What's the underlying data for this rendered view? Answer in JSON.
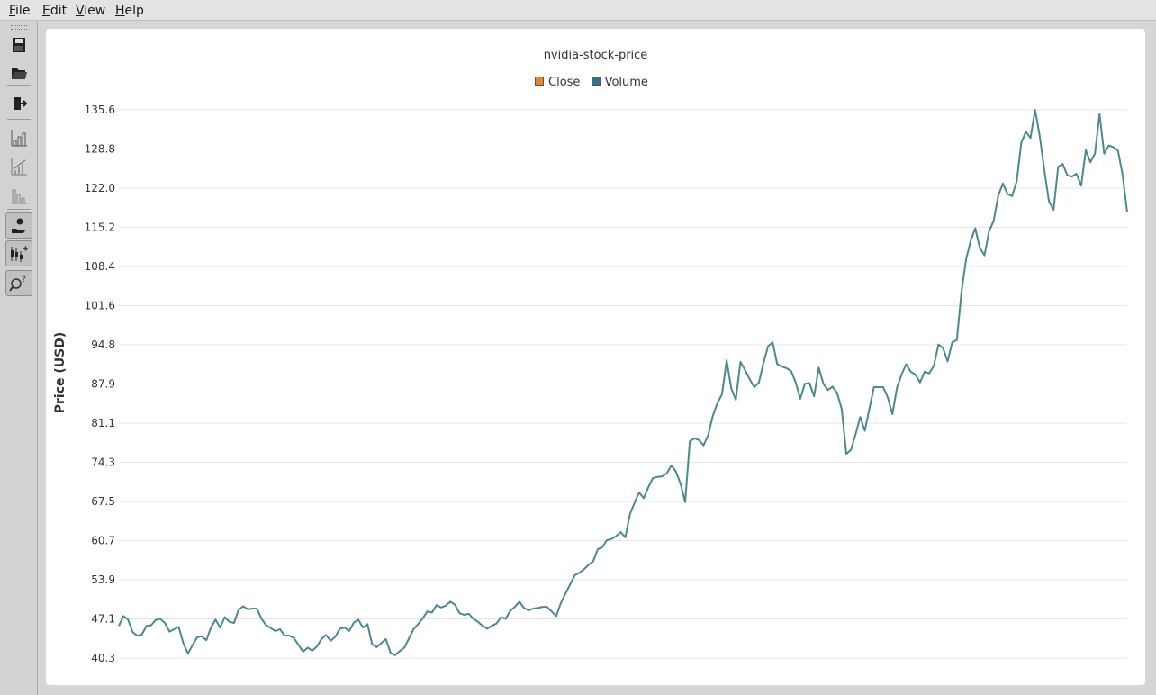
{
  "menu": {
    "items": [
      "File",
      "Edit",
      "View",
      "Help"
    ]
  },
  "toolbar": {
    "buttons": [
      {
        "icon": "save-icon",
        "pressed": false
      },
      {
        "icon": "open-folder-icon",
        "pressed": false
      },
      {
        "icon": "exit-icon",
        "pressed": false
      },
      {
        "icon": "bar-chart-icon",
        "pressed": false
      },
      {
        "icon": "line-chart-icon",
        "pressed": false
      },
      {
        "icon": "descending-chart-icon",
        "pressed": false
      },
      {
        "icon": "hand-coin-icon",
        "pressed": true
      },
      {
        "icon": "candlestick-add-icon",
        "pressed": true
      },
      {
        "icon": "search-help-icon",
        "pressed": true
      }
    ]
  },
  "colors": {
    "line": "#4a8a8e",
    "close_swatch": "#e8822a",
    "volume_swatch": "#3a6f8f",
    "grid": "#e4e4e4"
  },
  "chart_data": {
    "type": "line",
    "title": "nvidia-stock-price",
    "legend": [
      "Close",
      "Volume"
    ],
    "legend_colors": [
      "#e8822a",
      "#3a6f8f"
    ],
    "ylabel": "Price (USD)",
    "xlabel": "",
    "ylim": [
      40.3,
      135.6
    ],
    "yticks": [
      "40.3",
      "47.1",
      "53.9",
      "60.7",
      "67.5",
      "74.3",
      "81.1",
      "87.9",
      "94.8",
      "101.6",
      "108.4",
      "115.2",
      "122.0",
      "128.8",
      "135.6"
    ],
    "grid": true,
    "series": [
      {
        "name": "Close",
        "values": [
          45.9,
          47.6,
          47.0,
          44.8,
          44.2,
          44.4,
          45.9,
          46.0,
          46.9,
          47.1,
          46.4,
          44.9,
          45.3,
          45.7,
          42.9,
          41.1,
          42.5,
          43.9,
          44.1,
          43.4,
          45.6,
          47.0,
          45.6,
          47.4,
          46.6,
          46.4,
          48.7,
          49.3,
          48.8,
          48.9,
          48.9,
          47.1,
          46.0,
          45.5,
          45.0,
          45.3,
          44.2,
          44.2,
          43.8,
          42.6,
          41.4,
          42.1,
          41.6,
          42.3,
          43.6,
          44.3,
          43.3,
          44.0,
          45.4,
          45.6,
          45.0,
          46.4,
          47.0,
          45.6,
          46.2,
          42.7,
          42.2,
          42.9,
          43.6,
          41.2,
          40.8,
          41.5,
          42.1,
          43.7,
          45.3,
          46.2,
          47.2,
          48.4,
          48.2,
          49.5,
          49.1,
          49.4,
          50.1,
          49.6,
          48.1,
          47.8,
          48.0,
          47.1,
          46.6,
          45.9,
          45.4,
          45.9,
          46.3,
          47.4,
          47.1,
          48.5,
          49.2,
          50.1,
          49.0,
          48.6,
          48.9,
          49.0,
          49.2,
          49.2,
          48.4,
          47.6,
          49.9,
          51.5,
          53.1,
          54.7,
          55.1,
          55.7,
          56.5,
          57.1,
          59.2,
          59.6,
          60.8,
          61.0,
          61.5,
          62.2,
          61.3,
          65.3,
          67.3,
          69.1,
          68.1,
          70.0,
          71.6,
          71.8,
          71.9,
          72.4,
          73.8,
          72.7,
          70.6,
          67.4,
          78.0,
          78.5,
          78.2,
          77.3,
          79.1,
          82.4,
          84.6,
          86.2,
          92.1,
          87.2,
          85.2,
          91.8,
          90.4,
          88.8,
          87.4,
          88.2,
          91.6,
          94.5,
          95.2,
          91.4,
          91.0,
          90.7,
          90.2,
          88.2,
          85.4,
          88.0,
          88.1,
          85.8,
          90.8,
          88.0,
          86.9,
          87.5,
          86.4,
          83.6,
          75.8,
          76.5,
          79.2,
          82.2,
          79.8,
          83.6,
          87.4,
          87.4,
          87.4,
          85.6,
          82.7,
          87.3,
          89.6,
          91.4,
          90.1,
          89.6,
          88.2,
          90.1,
          89.8,
          91.1,
          94.8,
          94.2,
          91.9,
          95.2,
          95.6,
          103.9,
          109.6,
          112.8,
          115.0,
          111.6,
          110.3,
          114.5,
          116.3,
          120.7,
          122.8,
          121.0,
          120.6,
          123.2,
          129.9,
          131.8,
          130.7,
          135.6,
          131.1,
          125.2,
          119.7,
          118.2,
          125.7,
          126.2,
          124.2,
          124.0,
          124.5,
          122.4,
          128.6,
          126.5,
          128.0,
          134.9,
          128.0,
          129.4,
          129.1,
          128.5,
          124.3,
          117.8
        ]
      }
    ]
  }
}
